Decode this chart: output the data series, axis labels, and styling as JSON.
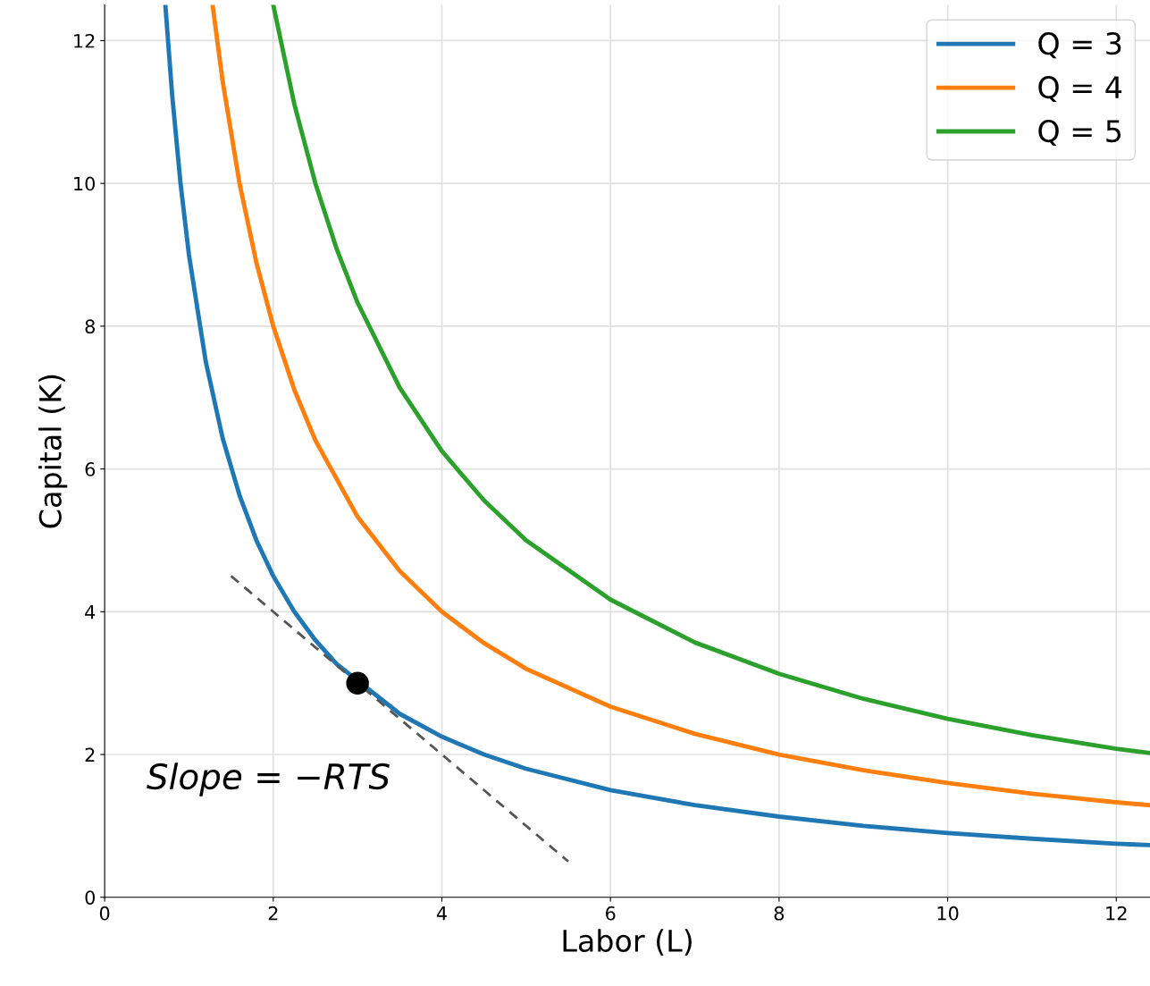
{
  "chart_data": {
    "type": "line",
    "xlabel": "Labor (L)",
    "ylabel": "Capital (K)",
    "xlim": [
      0,
      12.4
    ],
    "ylim": [
      0,
      12.5
    ],
    "xticks": [
      0,
      2,
      4,
      6,
      8,
      10,
      12
    ],
    "yticks": [
      0,
      2,
      4,
      6,
      8,
      10,
      12
    ],
    "grid": true,
    "legend": "top right",
    "series": [
      {
        "name": "Q = 3",
        "color": "#1f77b4",
        "x": [
          0.72,
          0.8,
          0.9,
          1,
          1.2,
          1.4,
          1.6,
          1.8,
          2,
          2.25,
          2.5,
          2.75,
          3.5,
          4,
          4.5,
          5,
          6,
          7,
          8,
          9,
          10,
          11,
          12,
          12.4
        ],
        "values": [
          12.5,
          11.25,
          10,
          9,
          7.5,
          6.43,
          5.63,
          5,
          4.5,
          4,
          3.6,
          3.27,
          2.57,
          2.25,
          2,
          1.8,
          1.5,
          1.29,
          1.13,
          1,
          0.9,
          0.82,
          0.75,
          0.73
        ]
      },
      {
        "name": "Q = 4",
        "color": "#ff7f0e",
        "x": [
          1.28,
          1.4,
          1.6,
          1.8,
          2,
          2.25,
          2.5,
          3,
          3.5,
          4,
          4.5,
          5,
          6,
          7,
          8,
          9,
          10,
          11,
          12,
          12.4
        ],
        "values": [
          12.5,
          11.43,
          10,
          8.89,
          8,
          7.11,
          6.4,
          5.33,
          4.57,
          4,
          3.56,
          3.2,
          2.67,
          2.29,
          2,
          1.78,
          1.6,
          1.45,
          1.33,
          1.29
        ]
      },
      {
        "name": "Q = 5",
        "color": "#2ca02c",
        "x": [
          2,
          2.25,
          2.5,
          2.75,
          3,
          3.5,
          4,
          4.5,
          5,
          6,
          7,
          8,
          9,
          10,
          11,
          12,
          12.4
        ],
        "values": [
          12.5,
          11.11,
          10,
          9.09,
          8.33,
          7.14,
          6.25,
          5.56,
          5,
          4.17,
          3.57,
          3.13,
          2.78,
          2.5,
          2.27,
          2.08,
          2.02
        ]
      },
      {
        "type": "line",
        "color": "#555555",
        "line_style": "dashed",
        "x": [
          1.5,
          5.5
        ],
        "values": [
          4.5,
          0.5
        ]
      },
      {
        "type": "scatter",
        "color": "#000000",
        "marker": "circle",
        "x": [
          3
        ],
        "values": [
          3
        ]
      }
    ],
    "annotations": [
      "Slope = −RTS"
    ]
  }
}
